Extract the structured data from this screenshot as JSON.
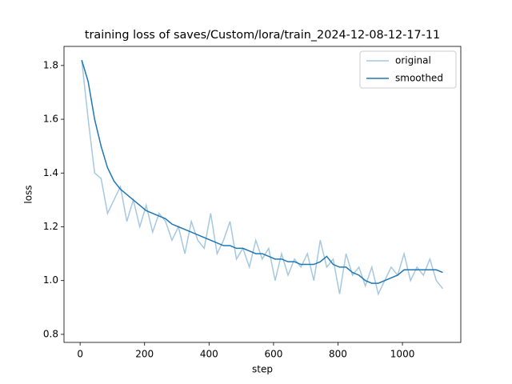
{
  "chart_data": {
    "type": "line",
    "title": "training loss of saves/Custom/lora/train_2024-12-08-12-17-11",
    "x_label": "step",
    "y_label": "loss",
    "x": [
      5,
      25,
      45,
      65,
      85,
      105,
      125,
      145,
      165,
      185,
      205,
      225,
      245,
      265,
      285,
      305,
      325,
      345,
      365,
      385,
      405,
      425,
      445,
      465,
      485,
      505,
      525,
      545,
      565,
      585,
      605,
      625,
      645,
      665,
      685,
      705,
      725,
      745,
      765,
      785,
      805,
      825,
      845,
      865,
      885,
      905,
      925,
      945,
      965,
      985,
      1005,
      1025,
      1045,
      1065,
      1085,
      1105,
      1125
    ],
    "series": [
      {
        "name": "original",
        "color": "#a6c8e0",
        "values": [
          1.82,
          1.6,
          1.4,
          1.38,
          1.25,
          1.3,
          1.35,
          1.22,
          1.3,
          1.2,
          1.28,
          1.18,
          1.25,
          1.22,
          1.15,
          1.2,
          1.1,
          1.22,
          1.15,
          1.12,
          1.25,
          1.1,
          1.15,
          1.22,
          1.08,
          1.12,
          1.05,
          1.15,
          1.08,
          1.12,
          1.0,
          1.1,
          1.02,
          1.08,
          1.05,
          1.1,
          1.0,
          1.15,
          1.05,
          1.08,
          0.95,
          1.1,
          1.02,
          1.05,
          0.98,
          1.05,
          0.95,
          1.0,
          1.05,
          1.02,
          1.1,
          1.0,
          1.05,
          1.02,
          1.08,
          1.0,
          0.97
        ]
      },
      {
        "name": "smoothed",
        "color": "#1f77b4",
        "values": [
          1.82,
          1.74,
          1.6,
          1.5,
          1.42,
          1.37,
          1.34,
          1.32,
          1.3,
          1.28,
          1.26,
          1.25,
          1.24,
          1.23,
          1.21,
          1.2,
          1.19,
          1.18,
          1.17,
          1.16,
          1.15,
          1.14,
          1.13,
          1.13,
          1.12,
          1.12,
          1.11,
          1.1,
          1.1,
          1.09,
          1.08,
          1.08,
          1.07,
          1.07,
          1.06,
          1.06,
          1.06,
          1.07,
          1.09,
          1.06,
          1.05,
          1.05,
          1.03,
          1.02,
          1.0,
          0.99,
          0.99,
          1.0,
          1.01,
          1.02,
          1.04,
          1.04,
          1.04,
          1.04,
          1.04,
          1.04,
          1.03
        ]
      }
    ],
    "xlim": [
      -50,
      1181
    ],
    "ylim": [
      0.77,
      1.871
    ],
    "xticks": [
      0,
      200,
      400,
      600,
      800,
      1000
    ],
    "yticks": [
      0.8,
      {
        "value": 1,
        "label": "1.0"
      },
      1.2,
      1.4,
      1.6,
      1.8
    ],
    "legend": "upper right"
  }
}
